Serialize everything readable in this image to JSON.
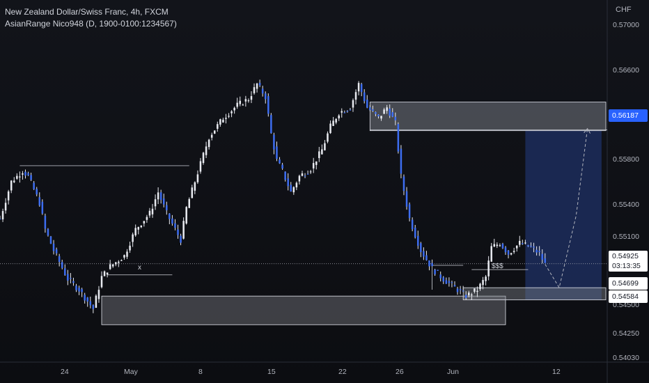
{
  "legend": {
    "title": "New Zealand Dollar/Swiss Franc, 4h, FXCM",
    "indicator": "AsianRange Nico948 (D, 1900-0100:1234567)"
  },
  "currency": "CHF",
  "price_axis": {
    "ticks": [
      "0.57000",
      "0.56600",
      "0.56187",
      "0.55800",
      "0.55400",
      "0.55100",
      "0.54925",
      "0.54699",
      "0.54584",
      "0.54500",
      "0.54250",
      "0.54030"
    ],
    "last_price": "0.54925",
    "countdown": "03:13:35",
    "target_tag": "0.56187",
    "box_tag_top": "0.54699",
    "box_tag_bottom": "0.54584"
  },
  "time_axis": {
    "labels": [
      "24",
      "May",
      "8",
      "15",
      "22",
      "26",
      "Jun",
      "12"
    ]
  },
  "annotations": {
    "x_mark": "x",
    "liquidity_mark": "$$$"
  },
  "colors": {
    "background": "#0e1014",
    "candle": "#3d6df0",
    "wick": "#e8eaf0",
    "position_zone": "#1c2d5c",
    "target_tag": "#2962ff"
  },
  "chart_data": {
    "type": "candlestick",
    "symbol": "NZDCHF",
    "timeframe": "4h",
    "source": "FXCM",
    "ylim": [
      0.5403,
      0.5715
    ],
    "close_path": [
      [
        0,
        0.5535
      ],
      [
        4,
        0.557
      ],
      [
        8,
        0.558
      ],
      [
        10,
        0.5575
      ],
      [
        14,
        0.555
      ],
      [
        16,
        0.5525
      ],
      [
        19,
        0.5505
      ],
      [
        24,
        0.5478
      ],
      [
        28,
        0.5468
      ],
      [
        33,
        0.545
      ],
      [
        36,
        0.548
      ],
      [
        39,
        0.549
      ],
      [
        44,
        0.55
      ],
      [
        48,
        0.5525
      ],
      [
        53,
        0.554
      ],
      [
        56,
        0.556
      ],
      [
        59,
        0.554
      ],
      [
        64,
        0.5515
      ],
      [
        66,
        0.5545
      ],
      [
        69,
        0.557
      ],
      [
        74,
        0.5612
      ],
      [
        79,
        0.563
      ],
      [
        84,
        0.5642
      ],
      [
        88,
        0.5648
      ],
      [
        91,
        0.5662
      ],
      [
        94,
        0.565
      ],
      [
        96,
        0.5615
      ],
      [
        98,
        0.559
      ],
      [
        100,
        0.558
      ],
      [
        103,
        0.556
      ],
      [
        106,
        0.5575
      ],
      [
        110,
        0.5582
      ],
      [
        114,
        0.56
      ],
      [
        117,
        0.5622
      ],
      [
        120,
        0.5635
      ],
      [
        124,
        0.564
      ],
      [
        127,
        0.5662
      ],
      [
        130,
        0.564
      ],
      [
        134,
        0.563
      ],
      [
        137,
        0.564
      ],
      [
        140,
        0.5625
      ],
      [
        142,
        0.5575
      ],
      [
        145,
        0.5535
      ],
      [
        149,
        0.5505
      ],
      [
        153,
        0.5488
      ],
      [
        157,
        0.5478
      ],
      [
        161,
        0.547
      ],
      [
        165,
        0.5462
      ],
      [
        169,
        0.5468
      ],
      [
        172,
        0.548
      ],
      [
        174,
        0.5508
      ],
      [
        177,
        0.5512
      ],
      [
        180,
        0.5502
      ],
      [
        184,
        0.5512
      ],
      [
        188,
        0.5508
      ],
      [
        191,
        0.5502
      ],
      [
        193,
        0.5492
      ]
    ],
    "projection": [
      [
        193,
        0.5492
      ],
      [
        198,
        0.547
      ],
      [
        204,
        0.5538
      ],
      [
        208,
        0.562
      ]
    ],
    "levels": {
      "target": 0.56187,
      "last": 0.54925,
      "box_top": 0.54699,
      "box_bottom": 0.54584
    },
    "zones": [
      {
        "name": "supply-zone",
        "top": 0.5645,
        "bottom": 0.5618
      },
      {
        "name": "demand-zone",
        "top": 0.5462,
        "bottom": 0.5435
      },
      {
        "name": "entry-zone",
        "top": 0.54699,
        "bottom": 0.54584
      },
      {
        "name": "long-position",
        "top": 0.56187,
        "bottom": 0.54584
      }
    ],
    "x_labels": [
      "24",
      "May",
      "8",
      "15",
      "22",
      "26",
      "Jun",
      "12"
    ]
  }
}
